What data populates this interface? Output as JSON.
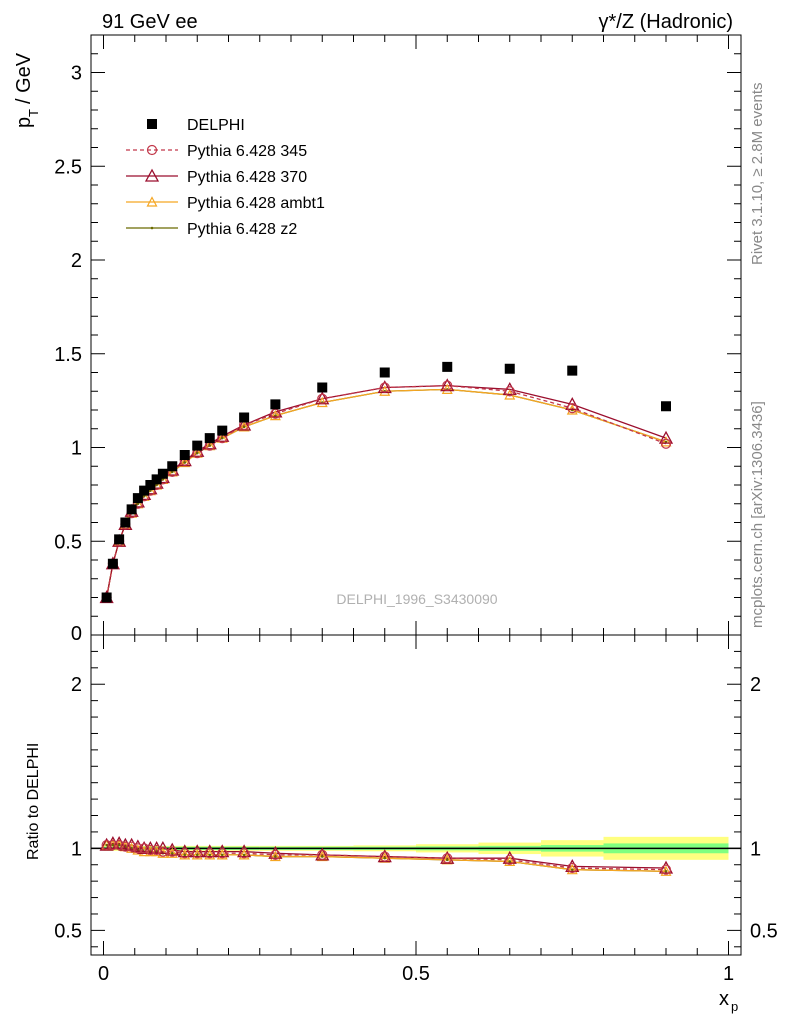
{
  "header": {
    "left_title": "91 GeV ee",
    "right_title": "γ*/Z (Hadronic)"
  },
  "side_text": {
    "rivet": "Rivet 3.1.10, ≥ 2.8M events",
    "source": "mcplots.cern.ch [arXiv:1306.3436]"
  },
  "watermark": "DELPHI_1996_S3430090",
  "chart_data": [
    {
      "type": "scatter",
      "panel": "main",
      "ylabel": "p_T / GeV",
      "xlabel": "x_p",
      "xlim": [
        -0.02,
        1.02
      ],
      "ylim": [
        0,
        3.2
      ],
      "yticks": [
        0.5,
        1,
        1.5,
        2,
        2.5,
        3
      ],
      "ytick_labels": [
        "0.5",
        "1",
        "1.5",
        "2",
        "2.5",
        "3"
      ],
      "ytick_bottom_label": "0",
      "legend_position": "top-left",
      "x": [
        0.005,
        0.015,
        0.025,
        0.035,
        0.045,
        0.055,
        0.065,
        0.075,
        0.085,
        0.095,
        0.11,
        0.13,
        0.15,
        0.17,
        0.19,
        0.225,
        0.275,
        0.35,
        0.45,
        0.55,
        0.65,
        0.75,
        0.9
      ],
      "series": [
        {
          "name": "DELPHI",
          "style": "data",
          "color": "#000000",
          "values": [
            0.2,
            0.38,
            0.51,
            0.6,
            0.67,
            0.73,
            0.77,
            0.8,
            0.83,
            0.86,
            0.9,
            0.96,
            1.01,
            1.05,
            1.09,
            1.16,
            1.23,
            1.32,
            1.4,
            1.43,
            1.42,
            1.41,
            1.22
          ]
        },
        {
          "name": "Pythia 6.428 345",
          "style": "dashed-circle",
          "color": "#c2384a",
          "values": [
            0.2,
            0.38,
            0.5,
            0.59,
            0.65,
            0.7,
            0.74,
            0.77,
            0.8,
            0.83,
            0.87,
            0.93,
            0.97,
            1.01,
            1.05,
            1.12,
            1.18,
            1.26,
            1.32,
            1.33,
            1.3,
            1.21,
            1.02
          ]
        },
        {
          "name": "Pythia 6.428 370",
          "style": "solid-triangle",
          "color": "#9b0e2d",
          "values": [
            0.2,
            0.38,
            0.5,
            0.59,
            0.66,
            0.71,
            0.75,
            0.78,
            0.81,
            0.84,
            0.88,
            0.93,
            0.98,
            1.02,
            1.06,
            1.12,
            1.19,
            1.26,
            1.32,
            1.33,
            1.31,
            1.23,
            1.05
          ]
        },
        {
          "name": "Pythia 6.428 ambt1",
          "style": "solid-open-triangle",
          "color": "#f5a623",
          "values": [
            0.2,
            0.38,
            0.5,
            0.59,
            0.65,
            0.7,
            0.74,
            0.77,
            0.8,
            0.83,
            0.87,
            0.92,
            0.97,
            1.01,
            1.05,
            1.11,
            1.17,
            1.24,
            1.3,
            1.31,
            1.28,
            1.2,
            1.03
          ]
        },
        {
          "name": "Pythia 6.428 z2",
          "style": "solid-dot",
          "color": "#6b6b00",
          "values": [
            0.2,
            0.38,
            0.5,
            0.59,
            0.65,
            0.7,
            0.74,
            0.77,
            0.8,
            0.83,
            0.87,
            0.92,
            0.97,
            1.01,
            1.05,
            1.11,
            1.17,
            1.24,
            1.3,
            1.31,
            1.28,
            1.2,
            1.03
          ]
        }
      ]
    },
    {
      "type": "line",
      "panel": "ratio",
      "ylabel": "Ratio to DELPHI",
      "xlabel": "x_p",
      "xlim": [
        -0.02,
        1.02
      ],
      "ylim": [
        0.35,
        2.3
      ],
      "yticks": [
        0.5,
        1,
        2
      ],
      "ytick_labels": [
        "0.5",
        "1",
        "2"
      ],
      "xticks": [
        0,
        0.5,
        1
      ],
      "xtick_labels": [
        "0",
        "0.5",
        "1"
      ],
      "x": [
        0.005,
        0.015,
        0.025,
        0.035,
        0.045,
        0.055,
        0.065,
        0.075,
        0.085,
        0.095,
        0.11,
        0.13,
        0.15,
        0.17,
        0.19,
        0.225,
        0.275,
        0.35,
        0.45,
        0.55,
        0.65,
        0.75,
        0.9
      ],
      "uncertainty_bands": {
        "inner_color": "#80ff80",
        "outer_color": "#ffff80",
        "x_edges": [
          0,
          0.01,
          0.02,
          0.03,
          0.04,
          0.05,
          0.06,
          0.07,
          0.08,
          0.09,
          0.1,
          0.12,
          0.14,
          0.16,
          0.18,
          0.2,
          0.25,
          0.3,
          0.4,
          0.5,
          0.6,
          0.7,
          0.8,
          1.0
        ],
        "inner_half_width": [
          0.01,
          0.01,
          0.01,
          0.01,
          0.01,
          0.01,
          0.01,
          0.01,
          0.01,
          0.01,
          0.01,
          0.01,
          0.01,
          0.01,
          0.01,
          0.01,
          0.01,
          0.01,
          0.01,
          0.012,
          0.015,
          0.02,
          0.03
        ],
        "outer_half_width": [
          0.015,
          0.015,
          0.015,
          0.015,
          0.015,
          0.015,
          0.015,
          0.015,
          0.015,
          0.015,
          0.015,
          0.015,
          0.015,
          0.015,
          0.015,
          0.015,
          0.015,
          0.015,
          0.018,
          0.025,
          0.035,
          0.05,
          0.07
        ]
      },
      "series": [
        {
          "name": "Pythia 6.428 345",
          "style": "dashed-circle",
          "color": "#c2384a",
          "values": [
            1.02,
            1.02,
            1.02,
            1.01,
            1.01,
            1.0,
            1.0,
            0.99,
            0.99,
            0.98,
            0.98,
            0.97,
            0.97,
            0.97,
            0.97,
            0.97,
            0.96,
            0.96,
            0.95,
            0.94,
            0.93,
            0.88,
            0.87
          ]
        },
        {
          "name": "Pythia 6.428 370",
          "style": "solid-triangle",
          "color": "#9b0e2d",
          "values": [
            1.02,
            1.03,
            1.03,
            1.02,
            1.02,
            1.01,
            1.0,
            1.0,
            1.0,
            1.0,
            0.99,
            0.98,
            0.98,
            0.98,
            0.98,
            0.98,
            0.97,
            0.96,
            0.95,
            0.94,
            0.94,
            0.89,
            0.88
          ]
        },
        {
          "name": "Pythia 6.428 ambt1",
          "style": "solid-open-triangle",
          "color": "#f5a623",
          "values": [
            1.02,
            1.02,
            1.02,
            1.01,
            1.0,
            0.99,
            0.98,
            0.98,
            0.98,
            0.97,
            0.97,
            0.96,
            0.96,
            0.96,
            0.96,
            0.96,
            0.95,
            0.95,
            0.94,
            0.93,
            0.92,
            0.87,
            0.86
          ]
        },
        {
          "name": "Pythia 6.428 z2",
          "style": "solid-dot",
          "color": "#6b6b00",
          "values": [
            1.02,
            1.02,
            1.02,
            1.01,
            1.0,
            0.99,
            0.98,
            0.98,
            0.98,
            0.97,
            0.97,
            0.96,
            0.96,
            0.96,
            0.96,
            0.96,
            0.95,
            0.95,
            0.94,
            0.93,
            0.92,
            0.87,
            0.86
          ]
        }
      ]
    }
  ]
}
